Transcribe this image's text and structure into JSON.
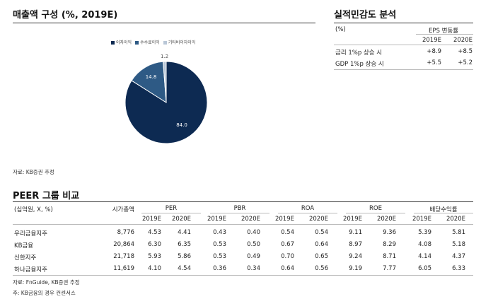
{
  "revenue": {
    "title": "매출액 구성 (%, 2019E)",
    "source": "자료: KB증권 추정",
    "legend": [
      "이자이익",
      "수수료이익",
      "기타비이자이익"
    ],
    "colors": [
      "#0d2a52",
      "#2e5a85",
      "#b9c7d7"
    ]
  },
  "chart_data": {
    "type": "pie",
    "categories": [
      "이자이익",
      "수수료이익",
      "기타비이자이익"
    ],
    "values": [
      84.0,
      14.8,
      1.2
    ],
    "labels": [
      "84.0",
      "14.8",
      "1.2"
    ],
    "title": "매출액 구성 (%, 2019E)",
    "legend_position": "top-right"
  },
  "sensitivity": {
    "title": "실적민감도 분석",
    "unit": "(%)",
    "group_header": "EPS 변동률",
    "years": [
      "2019E",
      "2020E"
    ],
    "rows": [
      {
        "label": "금리 1%p 상승 시",
        "v2019": "+8.9",
        "v2020": "+8.5"
      },
      {
        "label": "GDP 1%p 상승 시",
        "v2019": "+5.5",
        "v2020": "+5.2"
      }
    ]
  },
  "peer": {
    "title": "PEER 그룹 비교",
    "unit": "(십억원, X, %)",
    "mcap": "시가총액",
    "groups": [
      "PER",
      "PBR",
      "ROA",
      "ROE",
      "배당수익률"
    ],
    "years": [
      "2019E",
      "2020E"
    ],
    "rows": [
      {
        "name": "우리금융지주",
        "mcap": "8,776",
        "vals": [
          "4.53",
          "4.41",
          "0.43",
          "0.40",
          "0.54",
          "0.54",
          "9.11",
          "9.36",
          "5.39",
          "5.81"
        ]
      },
      {
        "name": "KB금융",
        "mcap": "20,864",
        "vals": [
          "6.30",
          "6.35",
          "0.53",
          "0.50",
          "0.67",
          "0.64",
          "8.97",
          "8.29",
          "4.08",
          "5.18"
        ]
      },
      {
        "name": "신한지주",
        "mcap": "21,718",
        "vals": [
          "5.93",
          "5.86",
          "0.53",
          "0.49",
          "0.70",
          "0.65",
          "9.24",
          "8.71",
          "4.14",
          "4.37"
        ]
      },
      {
        "name": "하나금융지주",
        "mcap": "11,619",
        "vals": [
          "4.10",
          "4.54",
          "0.36",
          "0.34",
          "0.64",
          "0.56",
          "9.19",
          "7.77",
          "6.05",
          "6.33"
        ]
      }
    ],
    "source": "자료: FnGuide, KB증권 추정",
    "note": "주: KB금융의 경우 컨센서스"
  }
}
